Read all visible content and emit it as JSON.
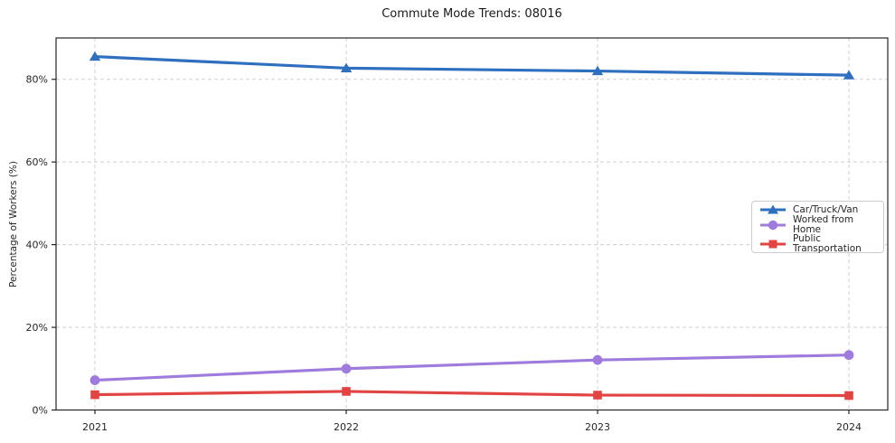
{
  "chart_data": {
    "type": "line",
    "title": "Commute Mode Trends: 08016",
    "xlabel": "",
    "ylabel": "Percentage of Workers (%)",
    "categories": [
      "2021",
      "2022",
      "2023",
      "2024"
    ],
    "series": [
      {
        "name": "Car/Truck/Van",
        "marker": "triangle",
        "color": "#2e6fc0",
        "values": [
          85.5,
          82.7,
          82.0,
          81.0
        ]
      },
      {
        "name": "Worked from Home",
        "marker": "circle",
        "color": "#9e7bdd",
        "values": [
          7.2,
          10.0,
          12.1,
          13.3
        ]
      },
      {
        "name": "Public Transportation",
        "marker": "square",
        "color": "#e24444",
        "values": [
          3.7,
          4.5,
          3.6,
          3.5
        ]
      }
    ],
    "ylim": [
      0,
      90
    ],
    "yticks": [
      0,
      20,
      40,
      60,
      80
    ],
    "ytick_labels": [
      "0%",
      "20%",
      "40%",
      "60%",
      "80%"
    ],
    "grid": "dashed",
    "grid_color": "#cfcfcf",
    "axis_color": "#262626",
    "tick_label_color": "#262626",
    "legend_position": "center-right"
  }
}
